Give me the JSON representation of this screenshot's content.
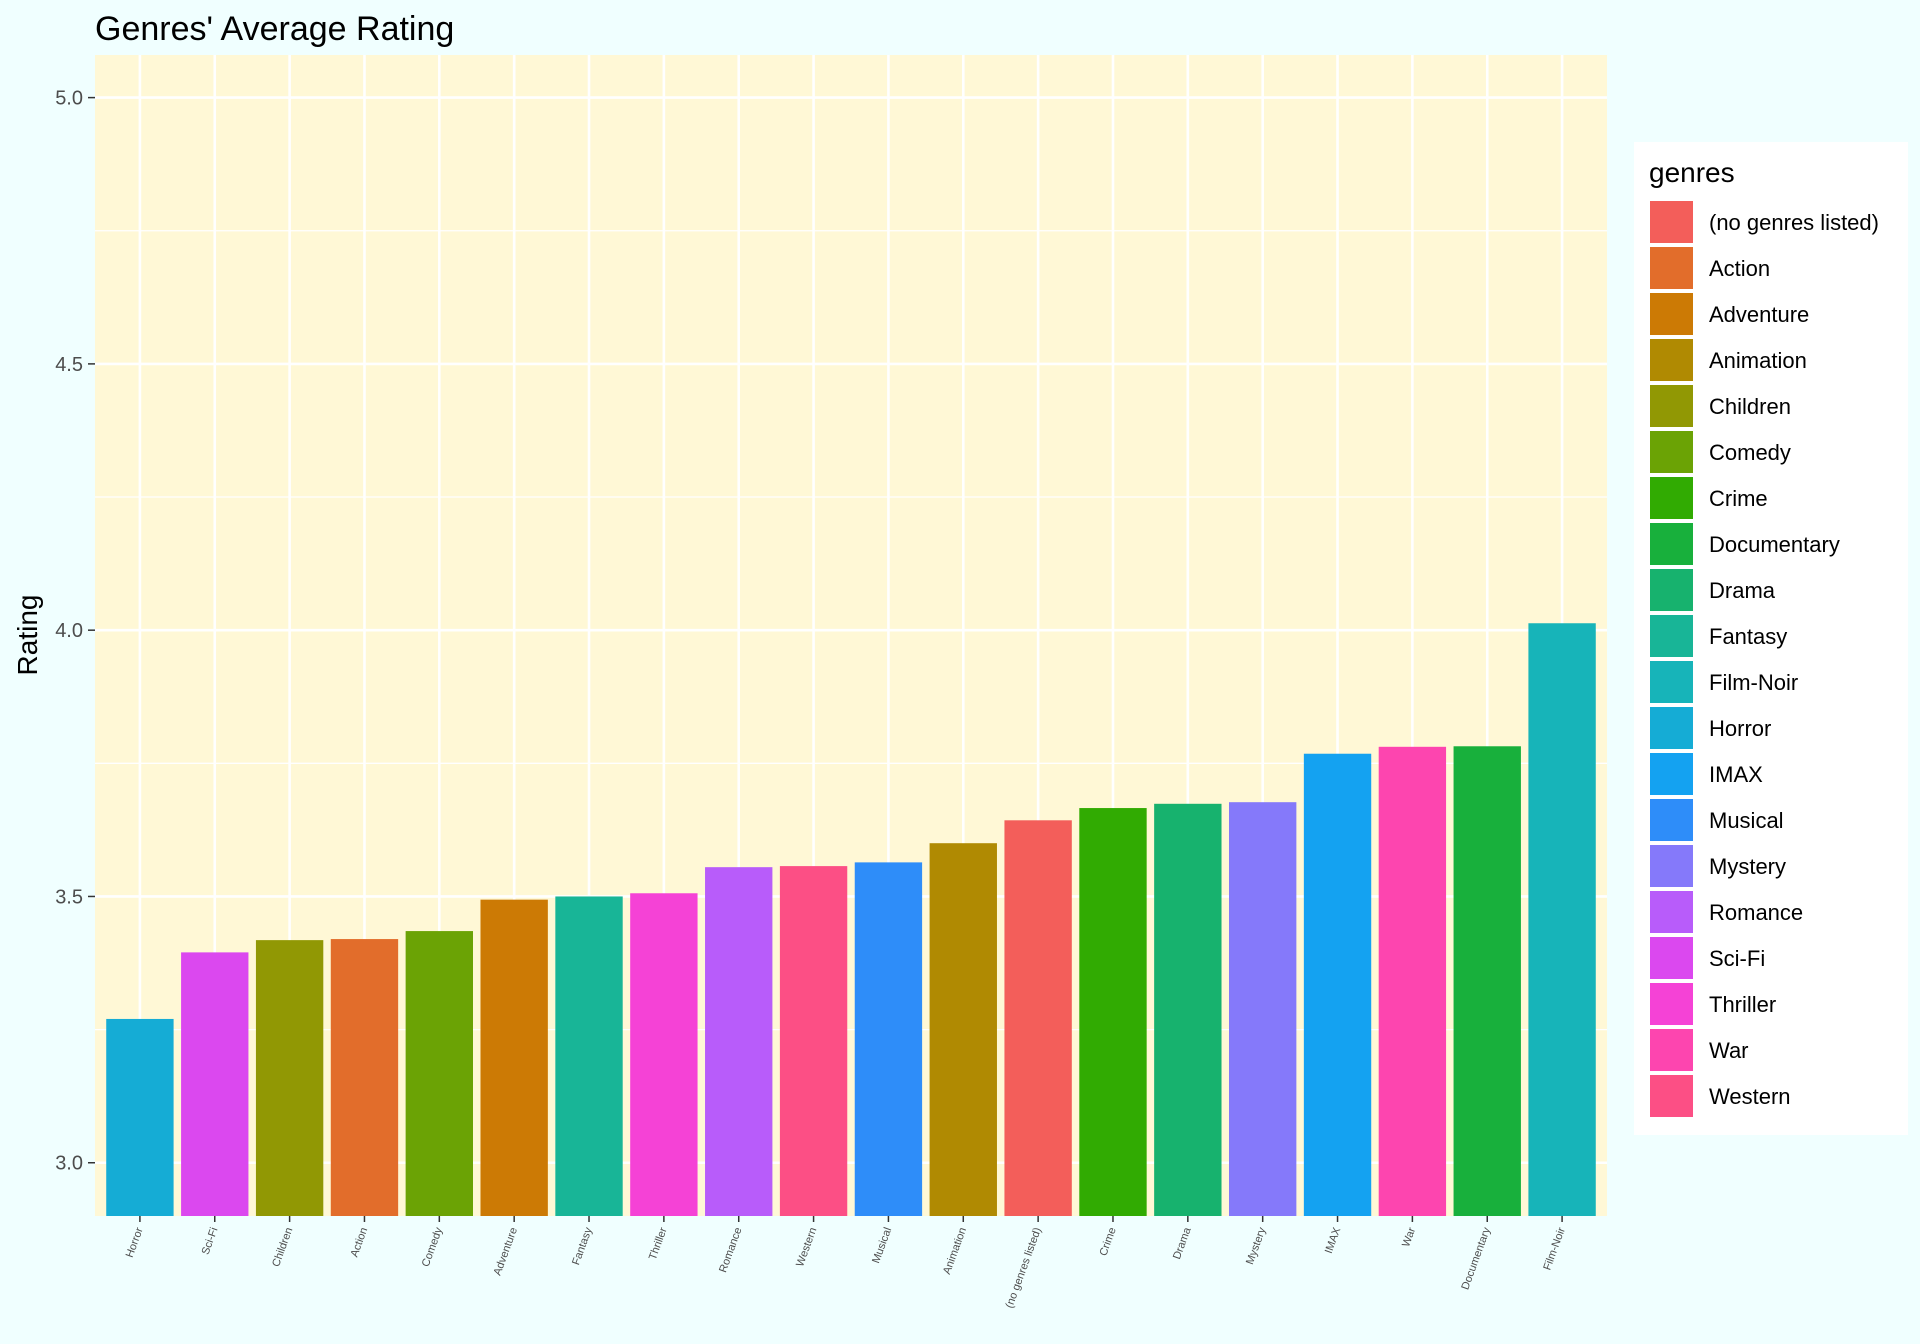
{
  "chart_data": {
    "type": "bar",
    "title": "Genres' Average Rating",
    "xlabel": "",
    "ylabel": "Rating",
    "ylim": [
      2.9,
      5.08
    ],
    "yticks": [
      3.0,
      3.5,
      4.0,
      4.5,
      5.0
    ],
    "ytick_labels": [
      "3.0",
      "3.5",
      "4.0",
      "4.5",
      "5.0"
    ],
    "grid": true,
    "panel_background": "#fff8d6",
    "legend_position": "right",
    "legend": {
      "title": "genres",
      "entries": [
        {
          "label": "(no genres listed)",
          "color": "#f35e5a"
        },
        {
          "label": "Action",
          "color": "#e26d2b"
        },
        {
          "label": "Adventure",
          "color": "#cc7a05"
        },
        {
          "label": "Animation",
          "color": "#b08a02"
        },
        {
          "label": "Children",
          "color": "#919804"
        },
        {
          "label": "Comedy",
          "color": "#6ba305"
        },
        {
          "label": "Crime",
          "color": "#31ab02"
        },
        {
          "label": "Documentary",
          "color": "#18b03c"
        },
        {
          "label": "Drama",
          "color": "#17b26e"
        },
        {
          "label": "Fantasy",
          "color": "#18b597"
        },
        {
          "label": "Film-Noir",
          "color": "#17b4b9"
        },
        {
          "label": "Horror",
          "color": "#15acd5"
        },
        {
          "label": "IMAX",
          "color": "#14a2f1"
        },
        {
          "label": "Musical",
          "color": "#2e8df9"
        },
        {
          "label": "Mystery",
          "color": "#8579fa"
        },
        {
          "label": "Romance",
          "color": "#b85cfa"
        },
        {
          "label": "Sci-Fi",
          "color": "#db48ef"
        },
        {
          "label": "Thriller",
          "color": "#f542d6"
        },
        {
          "label": "War",
          "color": "#fd45af"
        },
        {
          "label": "Western",
          "color": "#fc4f85"
        }
      ]
    },
    "categories": [
      "Horror",
      "Sci-Fi",
      "Children",
      "Action",
      "Comedy",
      "Adventure",
      "Fantasy",
      "Thriller",
      "Romance",
      "Western",
      "Musical",
      "Animation",
      "(no genres listed)",
      "Crime",
      "Drama",
      "Mystery",
      "IMAX",
      "War",
      "Documentary",
      "Film-Noir"
    ],
    "values": [
      3.27,
      3.395,
      3.418,
      3.42,
      3.435,
      3.494,
      3.5,
      3.506,
      3.555,
      3.557,
      3.564,
      3.6,
      3.643,
      3.666,
      3.674,
      3.677,
      3.768,
      3.781,
      3.782,
      4.013
    ],
    "bar_colors": [
      "#15acd5",
      "#db48ef",
      "#919804",
      "#e26d2b",
      "#6ba305",
      "#cc7a05",
      "#18b597",
      "#f542d6",
      "#b85cfa",
      "#fc4f85",
      "#2e8df9",
      "#b08a02",
      "#f35e5a",
      "#31ab02",
      "#17b26e",
      "#8579fa",
      "#14a2f1",
      "#fd45af",
      "#18b03c",
      "#17b4b9"
    ]
  }
}
